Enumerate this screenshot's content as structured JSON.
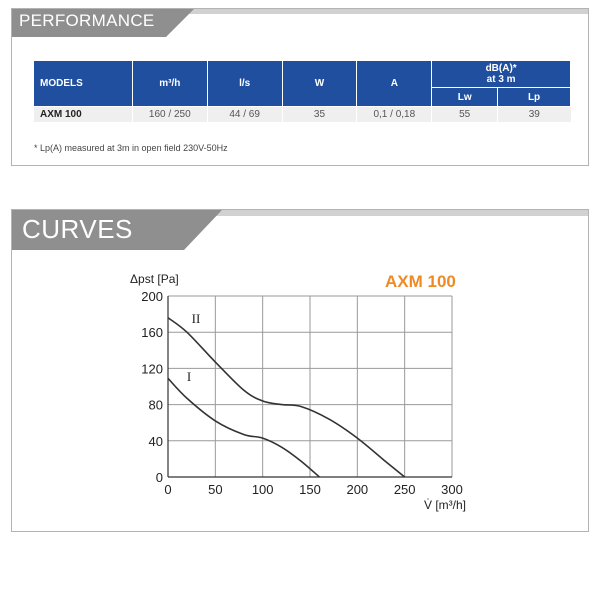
{
  "performance": {
    "header": "PERFORMANCE",
    "table": {
      "col_models": "MODELS",
      "col_m3h": "m³/h",
      "col_ls": "l/s",
      "col_w": "W",
      "col_a": "A",
      "col_db": "dB(A)*",
      "col_db_sub": "at 3 m",
      "col_lw": "Lw",
      "col_lp": "Lp",
      "rows": [
        {
          "model": "AXM 100",
          "m3h": "160 / 250",
          "ls": "44 / 69",
          "w": "35",
          "a": "0,1 / 0,18",
          "lw": "55",
          "lp": "39"
        }
      ]
    },
    "footnote": "* Lp(A) measured at 3m in open field 230V-50Hz"
  },
  "curves": {
    "header": "CURVES"
  },
  "colors": {
    "header_tab": "#8f8f8f",
    "table_header": "#1f4f9e",
    "title_orange": "#ef8a24"
  },
  "chart_data": {
    "type": "line",
    "title": "AXM 100",
    "ylabel": "Δpst [Pa]",
    "xlabel": "V̇ [m³/h]",
    "xlim": [
      0,
      300
    ],
    "ylim": [
      0,
      200
    ],
    "xticks": [
      0,
      50,
      100,
      150,
      200,
      250,
      300
    ],
    "yticks": [
      0,
      40,
      80,
      120,
      160,
      200
    ],
    "grid": true,
    "series": [
      {
        "name": "II",
        "label_at": [
          25,
          170
        ],
        "x": [
          0,
          20,
          50,
          80,
          100,
          120,
          140,
          170,
          200,
          230,
          250
        ],
        "y": [
          176,
          160,
          127,
          96,
          84,
          80,
          78,
          64,
          43,
          17,
          0
        ]
      },
      {
        "name": "I",
        "label_at": [
          20,
          106
        ],
        "x": [
          0,
          20,
          50,
          80,
          100,
          120,
          140,
          160
        ],
        "y": [
          109,
          87,
          62,
          47,
          43,
          33,
          18,
          0
        ]
      }
    ]
  }
}
